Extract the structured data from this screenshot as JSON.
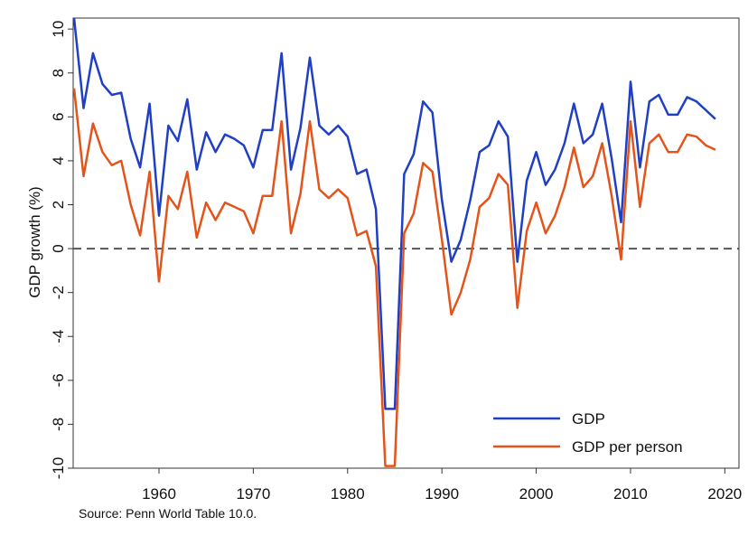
{
  "chart_data": {
    "type": "line",
    "title": "",
    "xlabel": "",
    "ylabel": "GDP growth (%)",
    "xlim": [
      1950.9,
      2021.5
    ],
    "ylim": [
      -10,
      10.5
    ],
    "xticks": [
      1960,
      1970,
      1980,
      1990,
      2000,
      2010,
      2020
    ],
    "yticks": [
      10,
      8,
      6,
      4,
      2,
      0,
      -2,
      -4,
      -6,
      -8,
      -10
    ],
    "reference_line": {
      "y": 0,
      "style": "dashed",
      "color": "#555555"
    },
    "legend": {
      "placement": "bottom-right"
    },
    "x": [
      1951,
      1952,
      1953,
      1954,
      1955,
      1956,
      1957,
      1958,
      1959,
      1960,
      1961,
      1962,
      1963,
      1964,
      1965,
      1966,
      1967,
      1968,
      1969,
      1970,
      1971,
      1972,
      1973,
      1974,
      1975,
      1976,
      1977,
      1978,
      1979,
      1980,
      1981,
      1982,
      1983,
      1984,
      1985,
      1986,
      1987,
      1988,
      1989,
      1990,
      1991,
      1992,
      1993,
      1994,
      1995,
      1996,
      1997,
      1998,
      1999,
      2000,
      2001,
      2002,
      2003,
      2004,
      2005,
      2006,
      2007,
      2008,
      2009,
      2010,
      2011,
      2012,
      2013,
      2014,
      2015,
      2016,
      2017,
      2018,
      2019
    ],
    "series": [
      {
        "name": "GDP",
        "color": "#1f3fc4",
        "values": [
          10.5,
          6.4,
          8.9,
          7.5,
          7.0,
          7.1,
          5.0,
          3.7,
          6.6,
          1.5,
          5.6,
          4.9,
          6.8,
          3.6,
          5.3,
          4.4,
          5.2,
          5.0,
          4.7,
          3.7,
          5.4,
          5.4,
          8.9,
          3.6,
          5.5,
          8.7,
          5.6,
          5.2,
          5.6,
          5.1,
          3.4,
          3.6,
          1.8,
          -7.3,
          -7.3,
          3.4,
          4.3,
          6.7,
          6.2,
          2.2,
          -0.6,
          0.4,
          2.2,
          4.4,
          4.7,
          5.8,
          5.1,
          -0.6,
          3.1,
          4.4,
          2.9,
          3.6,
          4.8,
          6.6,
          4.8,
          5.2,
          6.6,
          4.1,
          1.2,
          7.6,
          3.7,
          6.7,
          7.0,
          6.1,
          6.1,
          6.9,
          6.7,
          6.3,
          5.9
        ]
      },
      {
        "name": "GDP per person",
        "color": "#e4541a",
        "values": [
          7.3,
          3.3,
          5.7,
          4.4,
          3.8,
          4.0,
          2.0,
          0.6,
          3.5,
          -1.5,
          2.4,
          1.8,
          3.5,
          0.5,
          2.1,
          1.3,
          2.1,
          1.9,
          1.7,
          0.7,
          2.4,
          2.4,
          5.8,
          0.7,
          2.5,
          5.8,
          2.7,
          2.3,
          2.7,
          2.3,
          0.6,
          0.8,
          -0.8,
          -9.9,
          -9.9,
          0.7,
          1.6,
          3.9,
          3.5,
          0.4,
          -3.0,
          -2.0,
          -0.5,
          1.9,
          2.3,
          3.4,
          2.9,
          -2.7,
          0.8,
          2.1,
          0.7,
          1.5,
          2.8,
          4.6,
          2.8,
          3.3,
          4.8,
          2.4,
          -0.5,
          5.8,
          1.9,
          4.8,
          5.2,
          4.4,
          4.4,
          5.2,
          5.1,
          4.7,
          4.5
        ]
      }
    ],
    "source": "Source: Penn World Table 10.0."
  }
}
